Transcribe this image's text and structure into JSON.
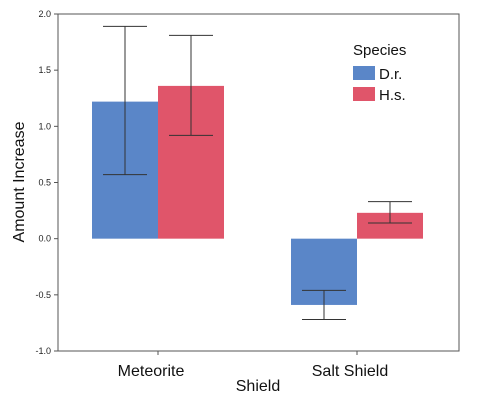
{
  "chart_data": {
    "type": "bar",
    "title": "",
    "xlabel": "Shield",
    "ylabel": "Amount Increase",
    "categories": [
      "Meteorite",
      "Salt Shield"
    ],
    "series": [
      {
        "name": "D.r.",
        "color": "#5a86c8",
        "values": [
          1.22,
          -0.59
        ],
        "err_low": [
          0.57,
          -0.72
        ],
        "err_high": [
          1.89,
          -0.46
        ]
      },
      {
        "name": "H.s.",
        "color": "#e0556a",
        "values": [
          1.36,
          0.23
        ],
        "err_low": [
          0.92,
          0.14
        ],
        "err_high": [
          1.81,
          0.33
        ]
      }
    ],
    "ylim": [
      -1.0,
      2.0
    ],
    "yticks": [
      "-1.0",
      "-0.5",
      "0.0",
      "0.5",
      "1.0",
      "1.5",
      "2.0"
    ],
    "grid": false,
    "legend": {
      "title": "Species",
      "position": "top-right"
    }
  }
}
